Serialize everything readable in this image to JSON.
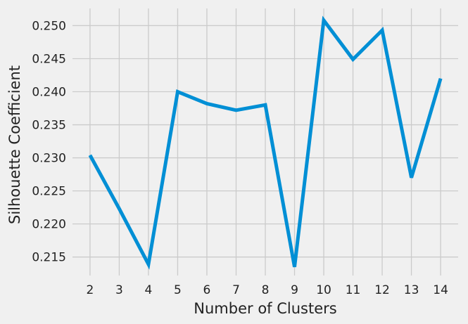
{
  "chart_data": {
    "type": "line",
    "title": "",
    "xlabel": "Number of Clusters",
    "ylabel": "Silhouette Coefficient",
    "x": [
      2,
      3,
      4,
      5,
      6,
      7,
      8,
      9,
      10,
      11,
      12,
      13,
      14
    ],
    "series": [
      {
        "values": [
          0.2304,
          0.2223,
          0.2139,
          0.24,
          0.2382,
          0.2372,
          0.238,
          0.2135,
          0.2508,
          0.2449,
          0.2493,
          0.227,
          0.242
        ]
      }
    ],
    "xticks": [
      "2",
      "3",
      "4",
      "5",
      "6",
      "7",
      "8",
      "9",
      "10",
      "11",
      "12",
      "13",
      "14"
    ],
    "yticks": [
      "0.215",
      "0.220",
      "0.225",
      "0.230",
      "0.235",
      "0.240",
      "0.245",
      "0.250"
    ],
    "ytick_values": [
      0.215,
      0.22,
      0.225,
      0.23,
      0.235,
      0.24,
      0.245,
      0.25
    ],
    "xlim": [
      1.4,
      14.6
    ],
    "ylim": [
      0.2122,
      0.2526
    ],
    "grid": true,
    "line_color": "#008fd5",
    "background_color": "#f0f0f0",
    "grid_color": "#cbcbcb"
  }
}
